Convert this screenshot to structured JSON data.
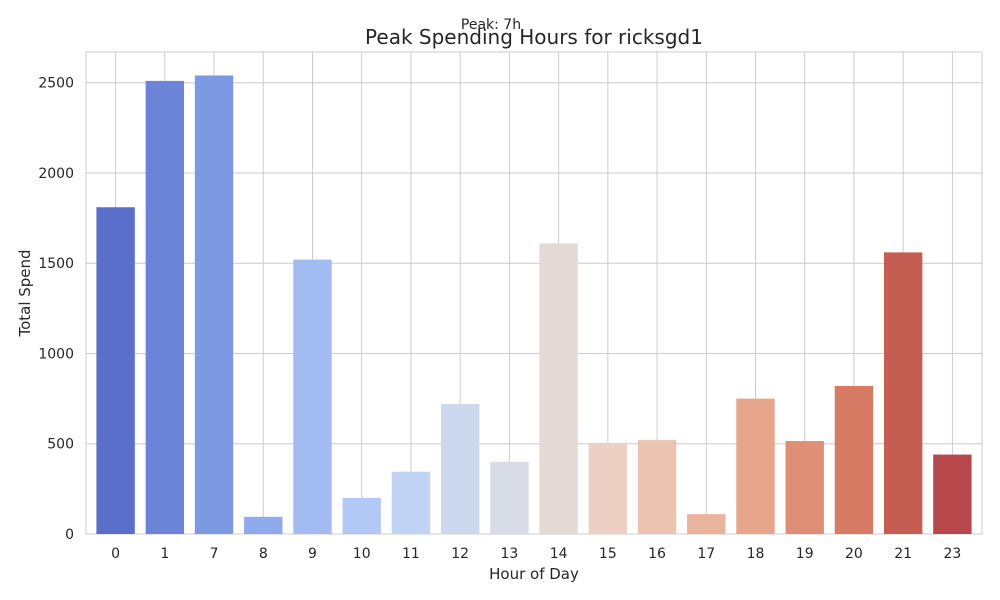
{
  "chart_data": {
    "type": "bar",
    "title": "Peak Spending Hours for ricksgd1",
    "annotation": "Peak: 7h",
    "xlabel": "Hour of Day",
    "ylabel": "Total Spend",
    "categories": [
      "0",
      "1",
      "7",
      "8",
      "9",
      "10",
      "11",
      "12",
      "13",
      "14",
      "15",
      "16",
      "17",
      "18",
      "19",
      "20",
      "21",
      "23"
    ],
    "values": [
      1810,
      2510,
      2540,
      95,
      1520,
      200,
      345,
      720,
      400,
      1610,
      505,
      520,
      110,
      750,
      515,
      820,
      1560,
      440
    ],
    "colors": [
      "#5a6fc9",
      "#6b84d8",
      "#7e99e4",
      "#90aaee",
      "#a2bbf3",
      "#b2c8f5",
      "#c0d3f4",
      "#ccd8ee",
      "#d8dce6",
      "#e3dad6",
      "#edcfc4",
      "#ecc3b1",
      "#eab39d",
      "#e7a68c",
      "#df8f76",
      "#d67a64",
      "#c55e52",
      "#b6474a"
    ],
    "yticks": [
      0,
      500,
      1000,
      1500,
      2000,
      2500
    ],
    "ylim": [
      0,
      2670
    ],
    "grid": true
  }
}
